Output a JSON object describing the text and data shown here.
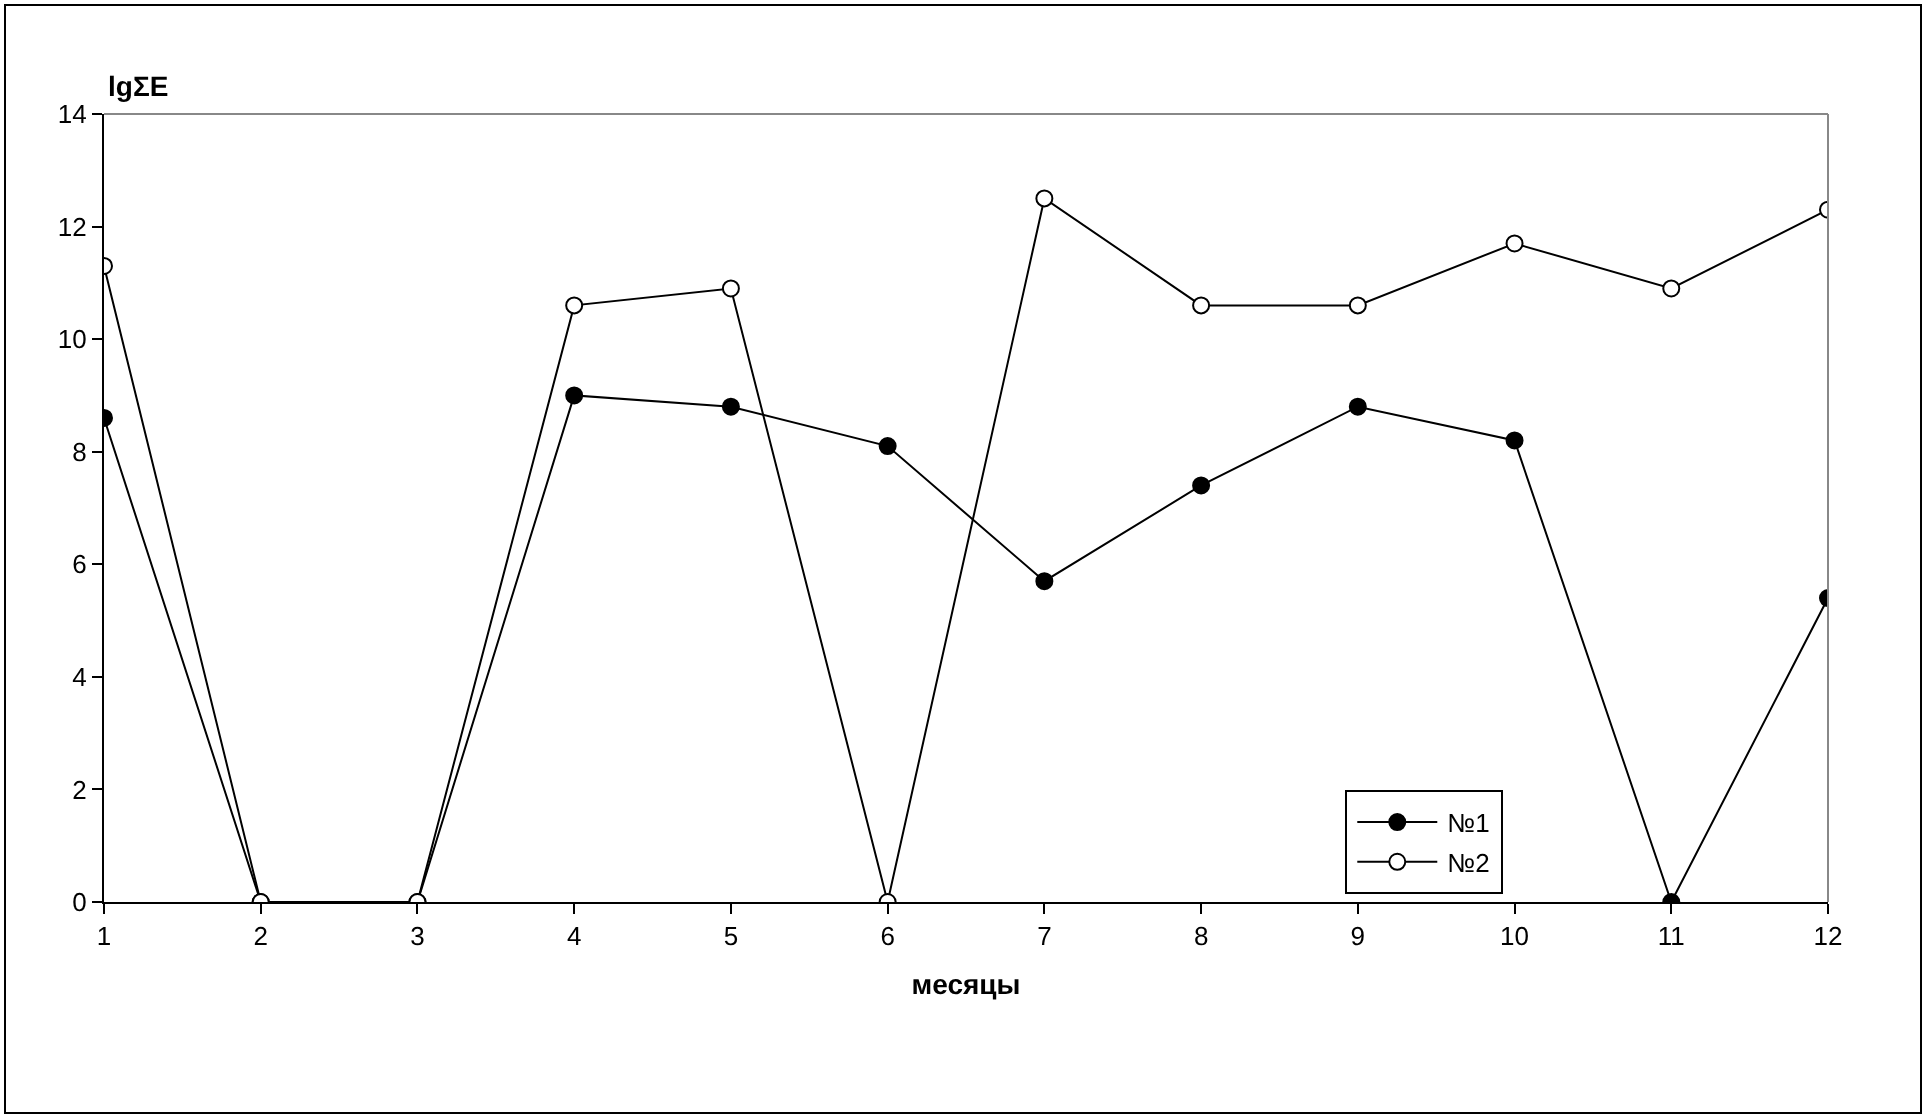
{
  "chart_data": {
    "type": "line",
    "ylabel": "lgΣE",
    "xlabel": "месяцы",
    "x": [
      1,
      2,
      3,
      4,
      5,
      6,
      7,
      8,
      9,
      10,
      11,
      12
    ],
    "series": [
      {
        "name": "№1",
        "color": "#000000",
        "values": [
          8.6,
          0,
          0,
          9.0,
          8.8,
          8.1,
          5.7,
          7.4,
          8.8,
          8.2,
          0,
          5.4
        ]
      },
      {
        "name": "№2",
        "color": "#000000",
        "values": [
          11.3,
          0,
          0,
          10.6,
          10.9,
          0,
          12.5,
          10.6,
          10.6,
          11.7,
          10.9,
          12.3
        ]
      }
    ],
    "xlim": [
      1,
      12
    ],
    "xticks": [
      1,
      2,
      3,
      4,
      5,
      6,
      7,
      8,
      9,
      10,
      11,
      12
    ],
    "ylim": [
      0,
      14
    ],
    "yticks": [
      0,
      2,
      4,
      6,
      8,
      10,
      12,
      14
    ],
    "grid": false,
    "legend": "bottom right",
    "marker": "circle"
  }
}
